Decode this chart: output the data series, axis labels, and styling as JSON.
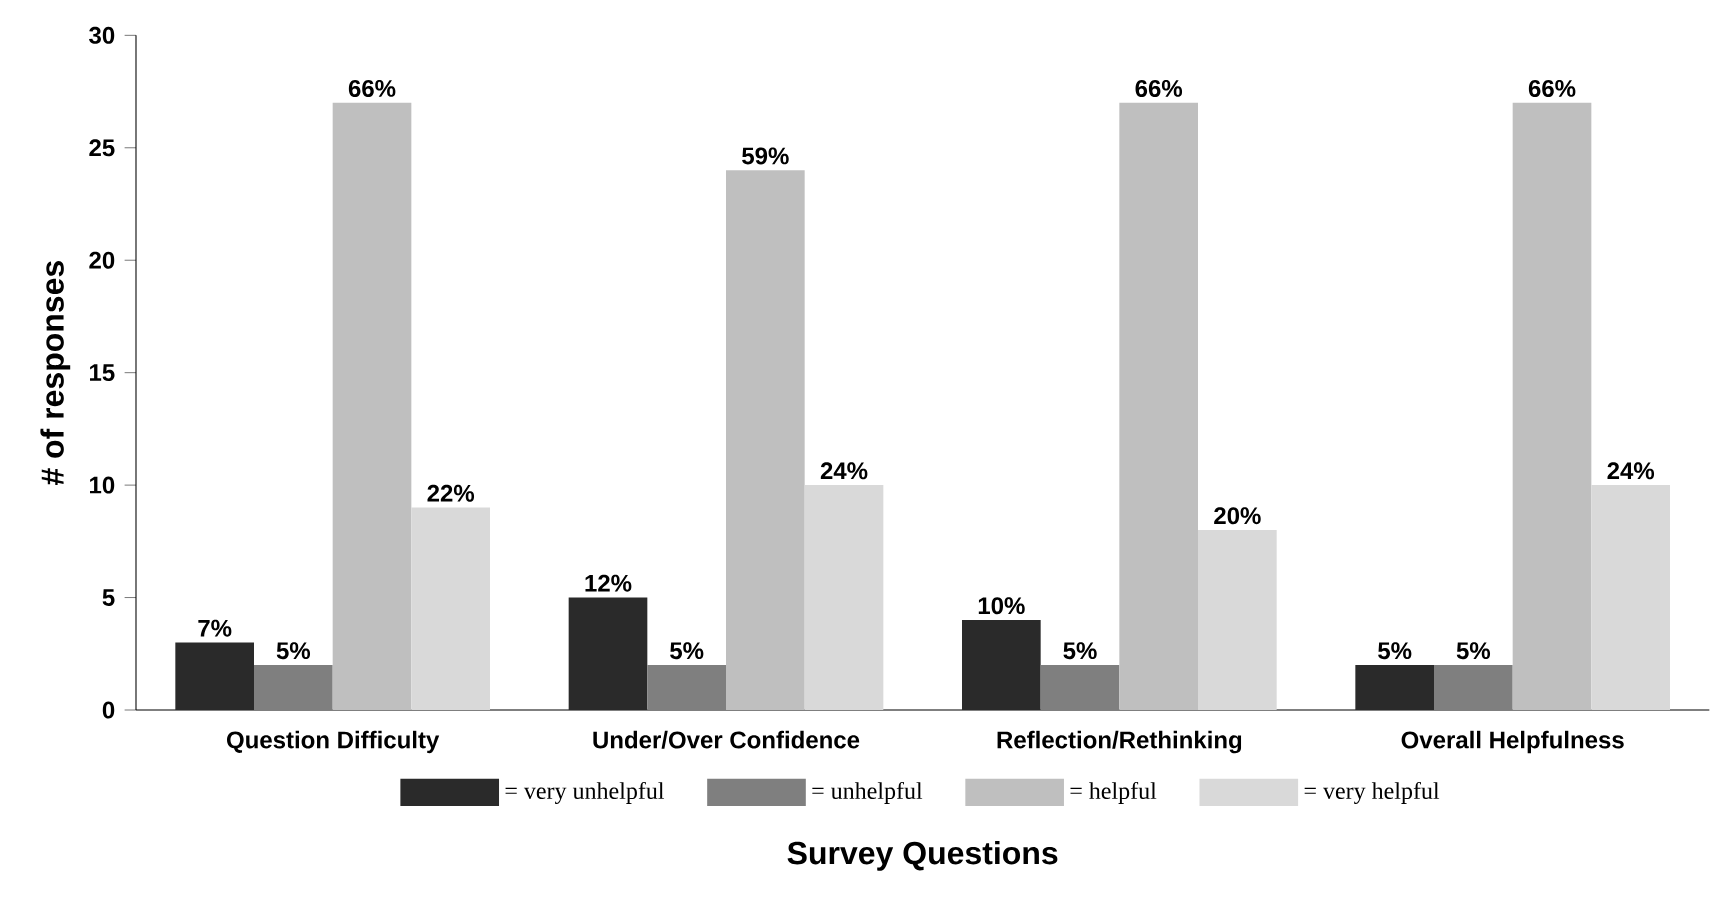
{
  "chart_data": {
    "type": "bar",
    "xlabel": "Survey Questions",
    "ylabel": "# of responses",
    "categories": [
      "Question Difficulty",
      "Under/Over Confidence",
      "Reflection/Rethinking",
      "Overall Helpfulness"
    ],
    "series": [
      {
        "name": "= very unhelpful",
        "color": "#2a2a2a",
        "values": [
          3,
          5,
          4,
          2
        ]
      },
      {
        "name": "= unhelpful",
        "color": "#7f7f7f",
        "values": [
          2,
          2,
          2,
          2
        ]
      },
      {
        "name": "= helpful",
        "color": "#bfbfbf",
        "values": [
          27,
          24,
          27,
          27
        ]
      },
      {
        "name": "= very helpful",
        "color": "#d9d9d9",
        "values": [
          9,
          10,
          8,
          10
        ]
      }
    ],
    "annotations": [
      "7%",
      "5%",
      "66%",
      "22%",
      "12%",
      "5%",
      "59%",
      "24%",
      "10%",
      "5%",
      "66%",
      "20%",
      "5%",
      "5%",
      "66%",
      "24%"
    ],
    "ylim": [
      0,
      30
    ],
    "yticks": [
      0,
      5,
      10,
      15,
      20,
      25,
      30
    ],
    "grid": false,
    "legend": "bottom"
  }
}
